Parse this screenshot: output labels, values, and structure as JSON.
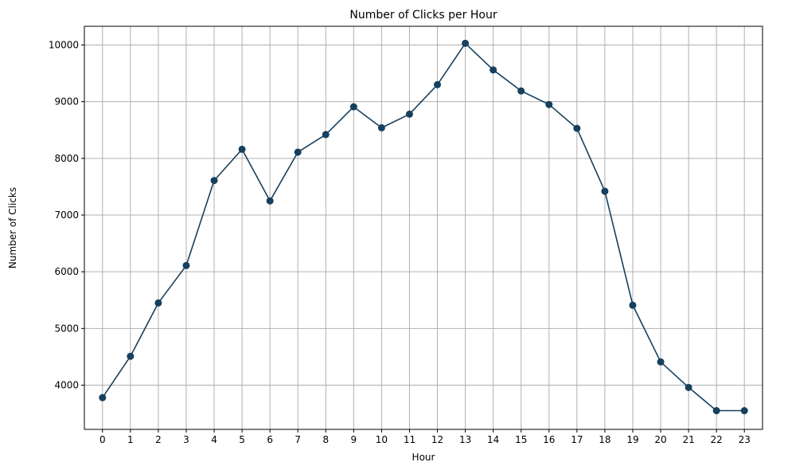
{
  "chart_data": {
    "type": "line",
    "title": "Number of Clicks per Hour",
    "xlabel": "Hour",
    "ylabel": "Number of Clicks",
    "x": [
      0,
      1,
      2,
      3,
      4,
      5,
      6,
      7,
      8,
      9,
      10,
      11,
      12,
      13,
      14,
      15,
      16,
      17,
      18,
      19,
      20,
      21,
      22,
      23
    ],
    "x_tick_labels": [
      "0",
      "1",
      "2",
      "3",
      "4",
      "5",
      "6",
      "7",
      "8",
      "9",
      "10",
      "11",
      "12",
      "13",
      "14",
      "15",
      "16",
      "17",
      "18",
      "19",
      "20",
      "21",
      "22",
      "23"
    ],
    "series": [
      {
        "values": [
          3780,
          4510,
          5450,
          6110,
          7610,
          8160,
          7250,
          8110,
          8420,
          8910,
          8540,
          8780,
          9300,
          10030,
          9560,
          9190,
          8950,
          8530,
          7420,
          5410,
          4410,
          3960,
          3550,
          3550
        ],
        "color": "#16405e",
        "marker": "circle"
      }
    ],
    "ylim": [
      3220,
      10330
    ],
    "xlim": [
      -0.65,
      23.65
    ],
    "y_ticks": [
      4000,
      5000,
      6000,
      7000,
      8000,
      9000,
      10000
    ],
    "y_tick_labels": [
      "4000",
      "5000",
      "6000",
      "7000",
      "8000",
      "9000",
      "10000"
    ],
    "grid": true,
    "grid_color": "#b0b0b0",
    "legend": "none"
  }
}
